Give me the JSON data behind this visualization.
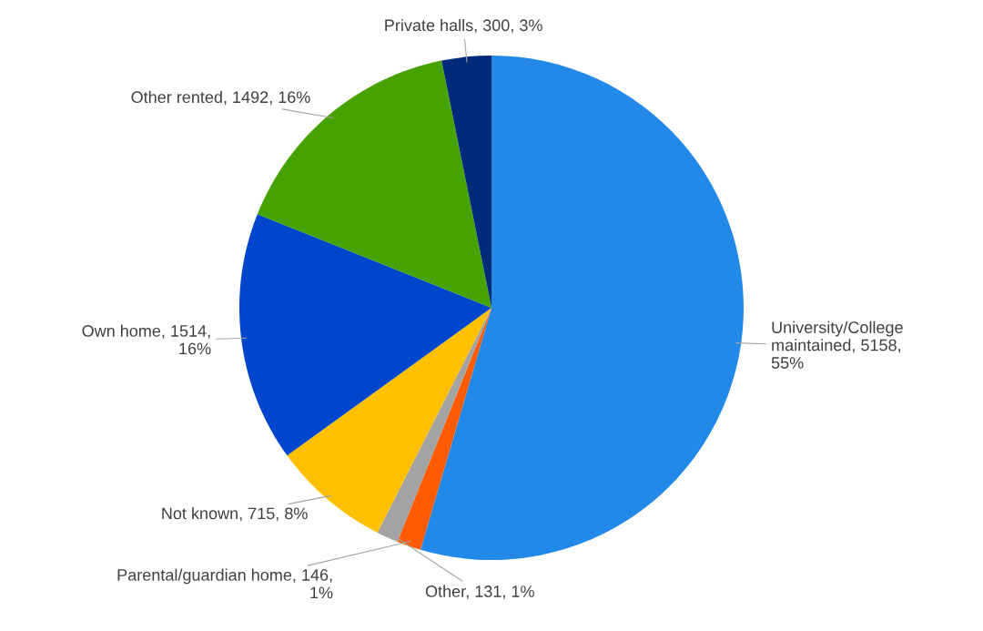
{
  "chart_data": {
    "type": "pie",
    "categories": [
      "University/College maintained",
      "Parental/guardian home",
      "Other",
      "Not known",
      "Own home",
      "Other rented",
      "Private halls"
    ],
    "values": [
      5158,
      146,
      131,
      715,
      1514,
      1492,
      300
    ],
    "colors": [
      "#2389e9",
      "#ff5b00",
      "#a3a3a3",
      "#ffc000",
      "#0046cc",
      "#45a200",
      "#002b7a"
    ],
    "value_labels": [
      "5158, 55%",
      "146, 1%",
      "131, 1%",
      "715, 8%",
      "1514, 16%",
      "1492, 16%",
      "300, 3%"
    ]
  }
}
